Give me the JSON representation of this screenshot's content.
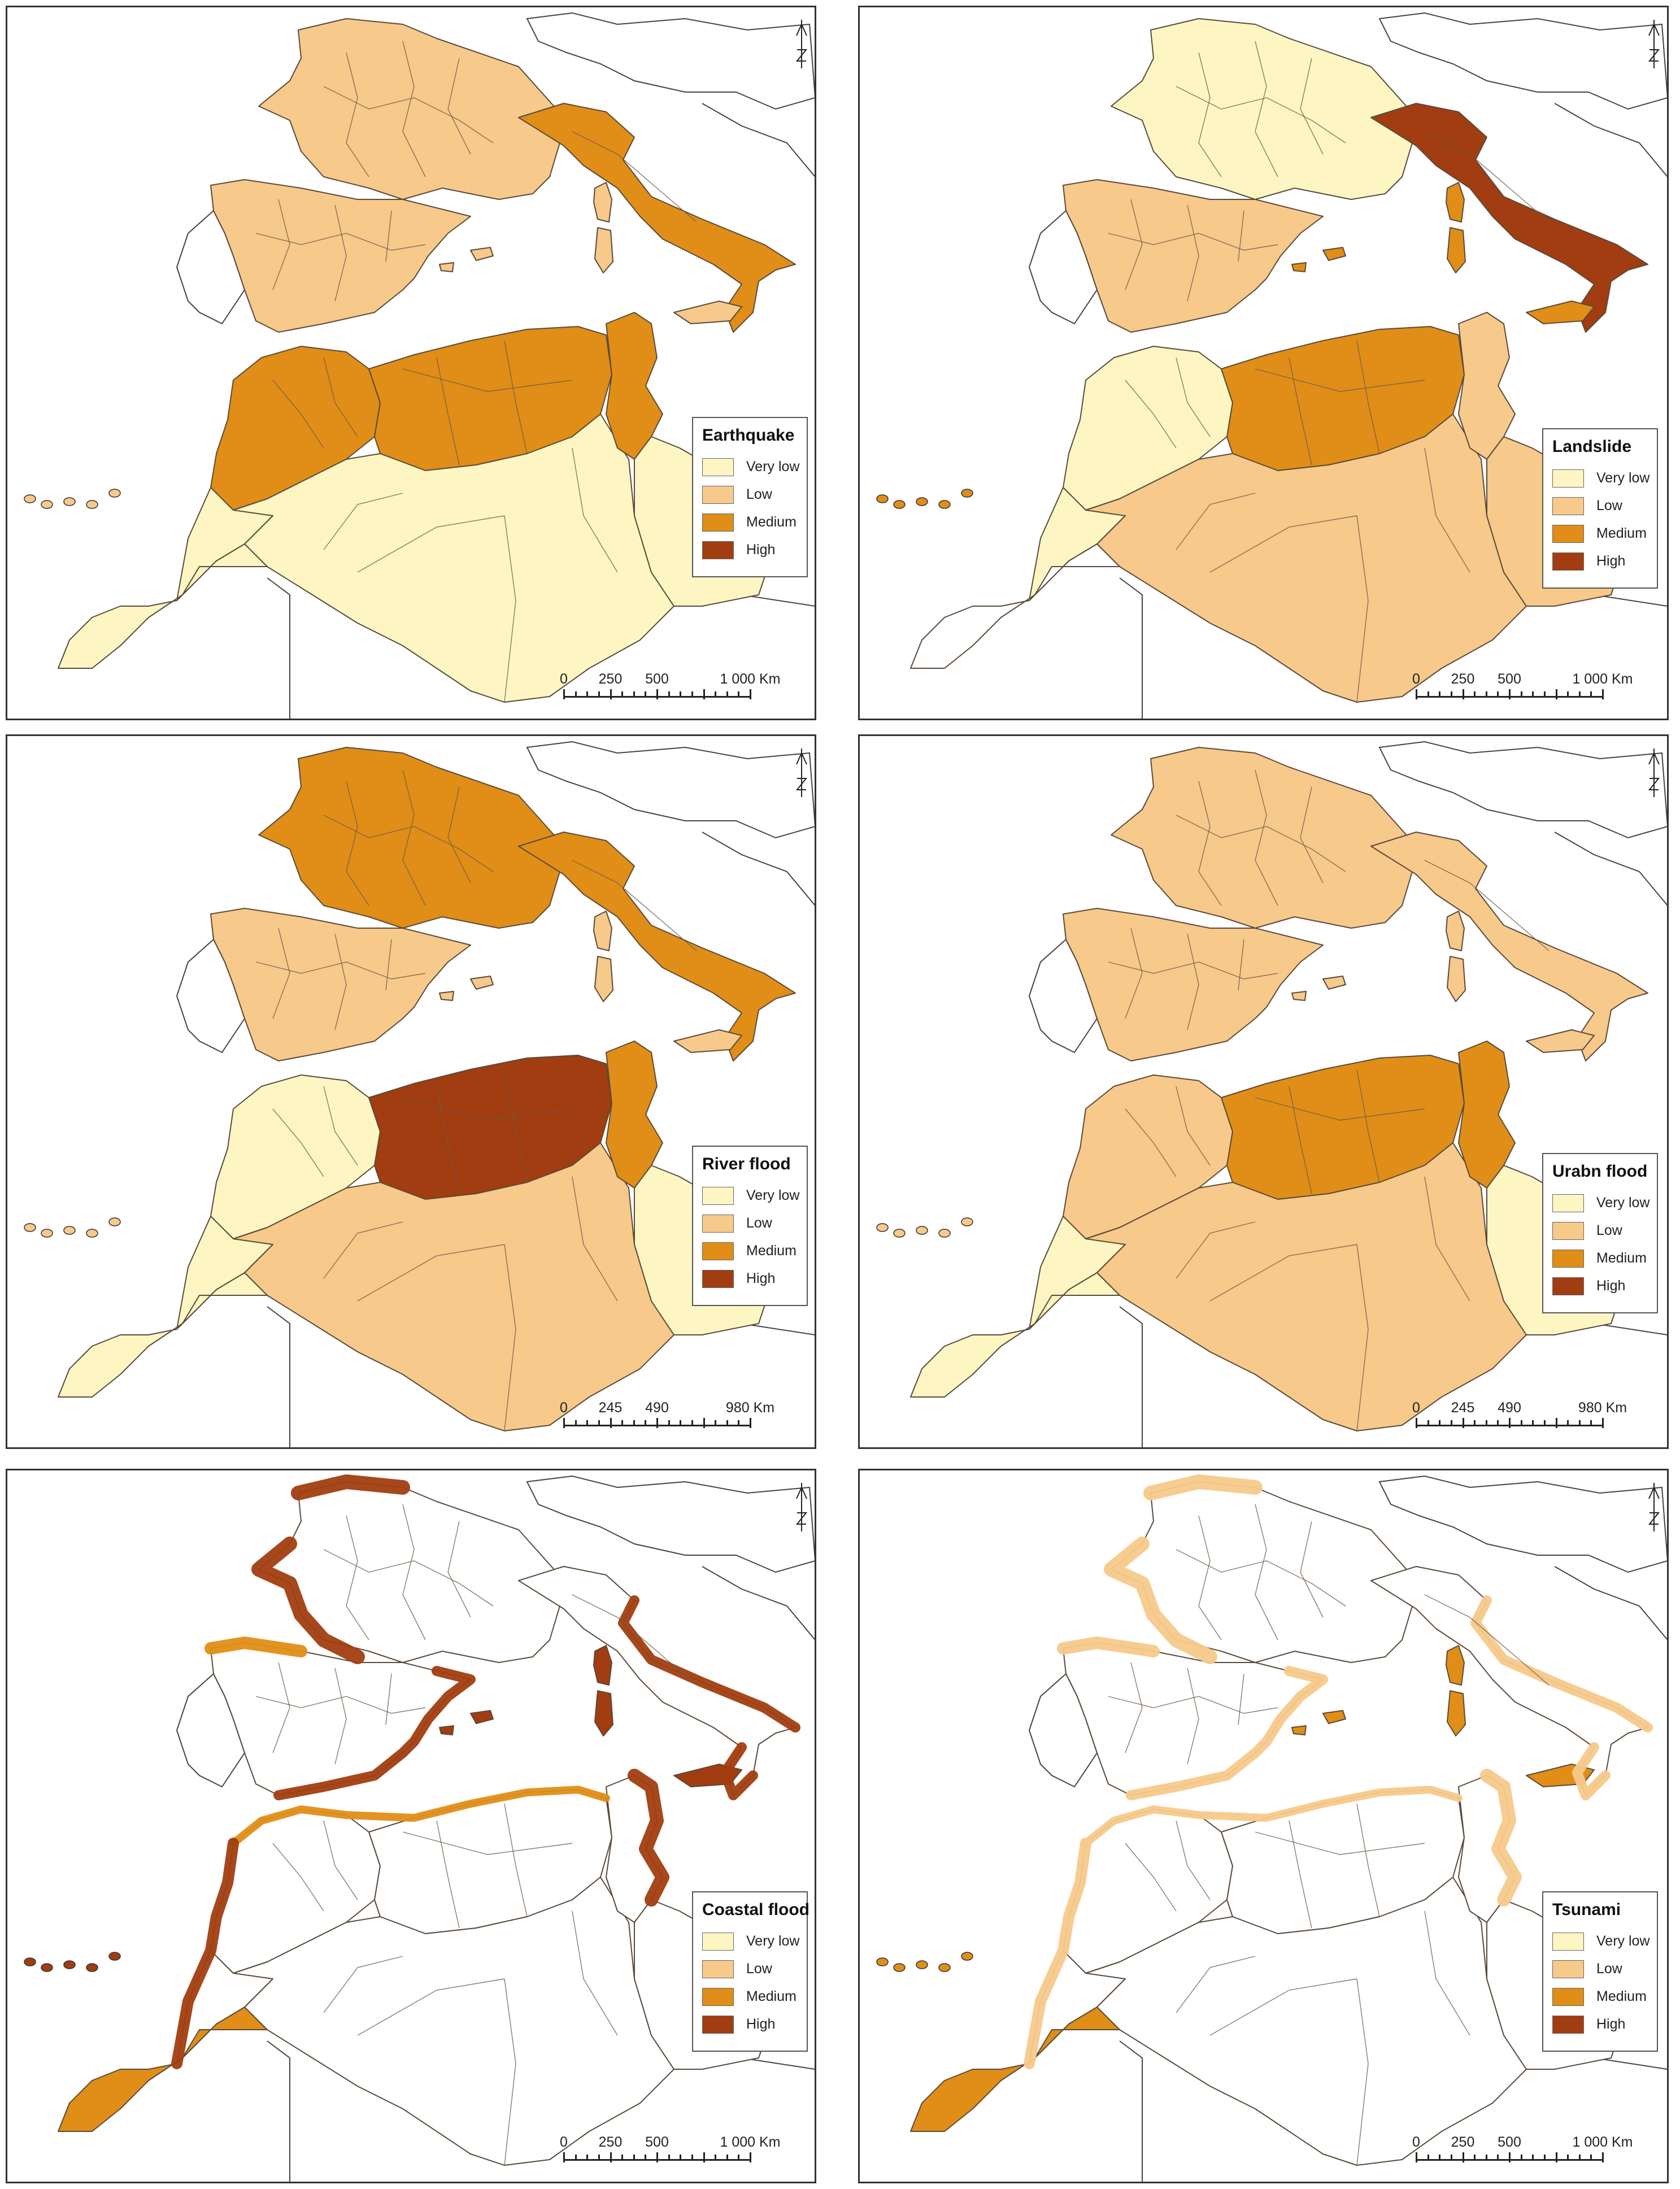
{
  "colors": {
    "very_low": "#fdf6c3",
    "low": "#f7c98a",
    "medium": "#e08e17",
    "high": "#a13d10",
    "none": "#ffffff",
    "sea": "#ffffff",
    "border": "#555555"
  },
  "legend_labels": [
    "Very low",
    "Low",
    "Medium",
    "High"
  ],
  "panels": [
    {
      "title": "Earthquake",
      "scale_labels": [
        "0",
        "250",
        "500",
        "1 000 Km"
      ],
      "fills": {
        "france": "low",
        "iberia": "low",
        "italy": "medium",
        "morocco_n": "medium",
        "morocco_s": "very_low",
        "algeria_n": "medium",
        "algeria_s": "very_low",
        "tunisia": "medium",
        "libya_w": "very_low",
        "westsahara": "very_low",
        "islands": "low"
      }
    },
    {
      "title": "Landslide",
      "scale_labels": [
        "0",
        "250",
        "500",
        "1 000 Km"
      ],
      "fills": {
        "france": "very_low",
        "iberia": "low",
        "italy": "high",
        "morocco_n": "very_low",
        "morocco_s": "very_low",
        "algeria_n": "medium",
        "algeria_s": "low",
        "tunisia": "low",
        "libya_w": "low",
        "westsahara": "none",
        "islands": "medium"
      }
    },
    {
      "title": "River flood",
      "scale_labels": [
        "0",
        "245",
        "490",
        "980 Km"
      ],
      "fills": {
        "france": "medium",
        "iberia": "low",
        "italy": "medium",
        "morocco_n": "very_low",
        "morocco_s": "very_low",
        "algeria_n": "high",
        "algeria_s": "low",
        "tunisia": "medium",
        "libya_w": "very_low",
        "westsahara": "very_low",
        "islands": "low"
      }
    },
    {
      "title": "Urabn flood",
      "scale_labels": [
        "0",
        "245",
        "490",
        "980 Km"
      ],
      "fills": {
        "france": "low",
        "iberia": "low",
        "italy": "low",
        "morocco_n": "low",
        "morocco_s": "very_low",
        "algeria_n": "medium",
        "algeria_s": "low",
        "tunisia": "medium",
        "libya_w": "very_low",
        "westsahara": "very_low",
        "islands": "low"
      }
    },
    {
      "title": "Coastal flood",
      "scale_labels": [
        "0",
        "250",
        "500",
        "1 000 Km"
      ],
      "fills": {
        "france": "none",
        "iberia": "none",
        "italy": "none",
        "morocco_n": "none",
        "morocco_s": "none",
        "algeria_n": "none",
        "algeria_s": "none",
        "tunisia": "none",
        "libya_w": "none",
        "westsahara": "medium",
        "islands": "high"
      }
    },
    {
      "title": "Tsunami",
      "scale_labels": [
        "0",
        "250",
        "500",
        "1 000 Km"
      ],
      "fills": {
        "france": "none",
        "iberia": "none",
        "italy": "none",
        "morocco_n": "none",
        "morocco_s": "none",
        "algeria_n": "none",
        "algeria_s": "none",
        "tunisia": "none",
        "libya_w": "none",
        "westsahara": "medium",
        "islands": "medium"
      }
    }
  ]
}
